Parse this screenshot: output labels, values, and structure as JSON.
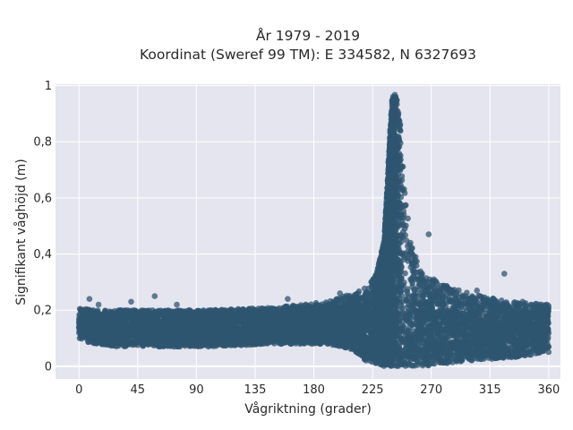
{
  "chart_data": {
    "type": "scatter",
    "title": "År 1979 - 2019",
    "subtitle": "Koordinat (Sweref 99 TM): E 334582, N 6327693",
    "xlabel": "Vågriktning (grader)",
    "ylabel": "Signifikant våghöjd (m)",
    "xlim": [
      -18,
      369
    ],
    "ylim": [
      -0.045,
      1.005
    ],
    "x_ticks": [
      0,
      45,
      90,
      135,
      180,
      225,
      270,
      315,
      360
    ],
    "x_tick_labels": [
      "0",
      "45",
      "90",
      "135",
      "180",
      "225",
      "270",
      "315",
      "360"
    ],
    "y_ticks": [
      0,
      0.2,
      0.4,
      0.6,
      0.8,
      1
    ],
    "y_tick_labels": [
      "0",
      "0,2",
      "0,4",
      "0,6",
      "0,8",
      "1"
    ],
    "grid": true,
    "marker_color": "#2f5670",
    "background_color": "#e5e5ef",
    "series": [
      {
        "outliers": {
          "x": [
            8,
            58,
            247,
            268,
            326,
            15,
            40,
            75,
            160,
            200,
            233,
            252,
            258,
            305,
            340
          ],
          "y": [
            0.24,
            0.25,
            0.53,
            0.47,
            0.33,
            0.22,
            0.23,
            0.22,
            0.24,
            0.26,
            0.37,
            0.41,
            0.39,
            0.27,
            0.23
          ]
        },
        "envelope": {
          "x": [
            0,
            10,
            30,
            60,
            100,
            150,
            190,
            210,
            220,
            228,
            234,
            238,
            240,
            242,
            244,
            246,
            250,
            256,
            264,
            280,
            300,
            330,
            360
          ],
          "y_max": [
            0.21,
            0.2,
            0.2,
            0.2,
            0.2,
            0.21,
            0.23,
            0.26,
            0.28,
            0.33,
            0.45,
            0.8,
            0.96,
            0.97,
            0.95,
            0.88,
            0.6,
            0.4,
            0.33,
            0.29,
            0.26,
            0.23,
            0.22
          ],
          "y_min": [
            0.1,
            0.08,
            0.07,
            0.07,
            0.07,
            0.08,
            0.08,
            0.06,
            0.02,
            0.01,
            0,
            0,
            0,
            0,
            0,
            0,
            0,
            0,
            0,
            0.01,
            0.02,
            0.03,
            0.05
          ]
        }
      }
    ]
  }
}
